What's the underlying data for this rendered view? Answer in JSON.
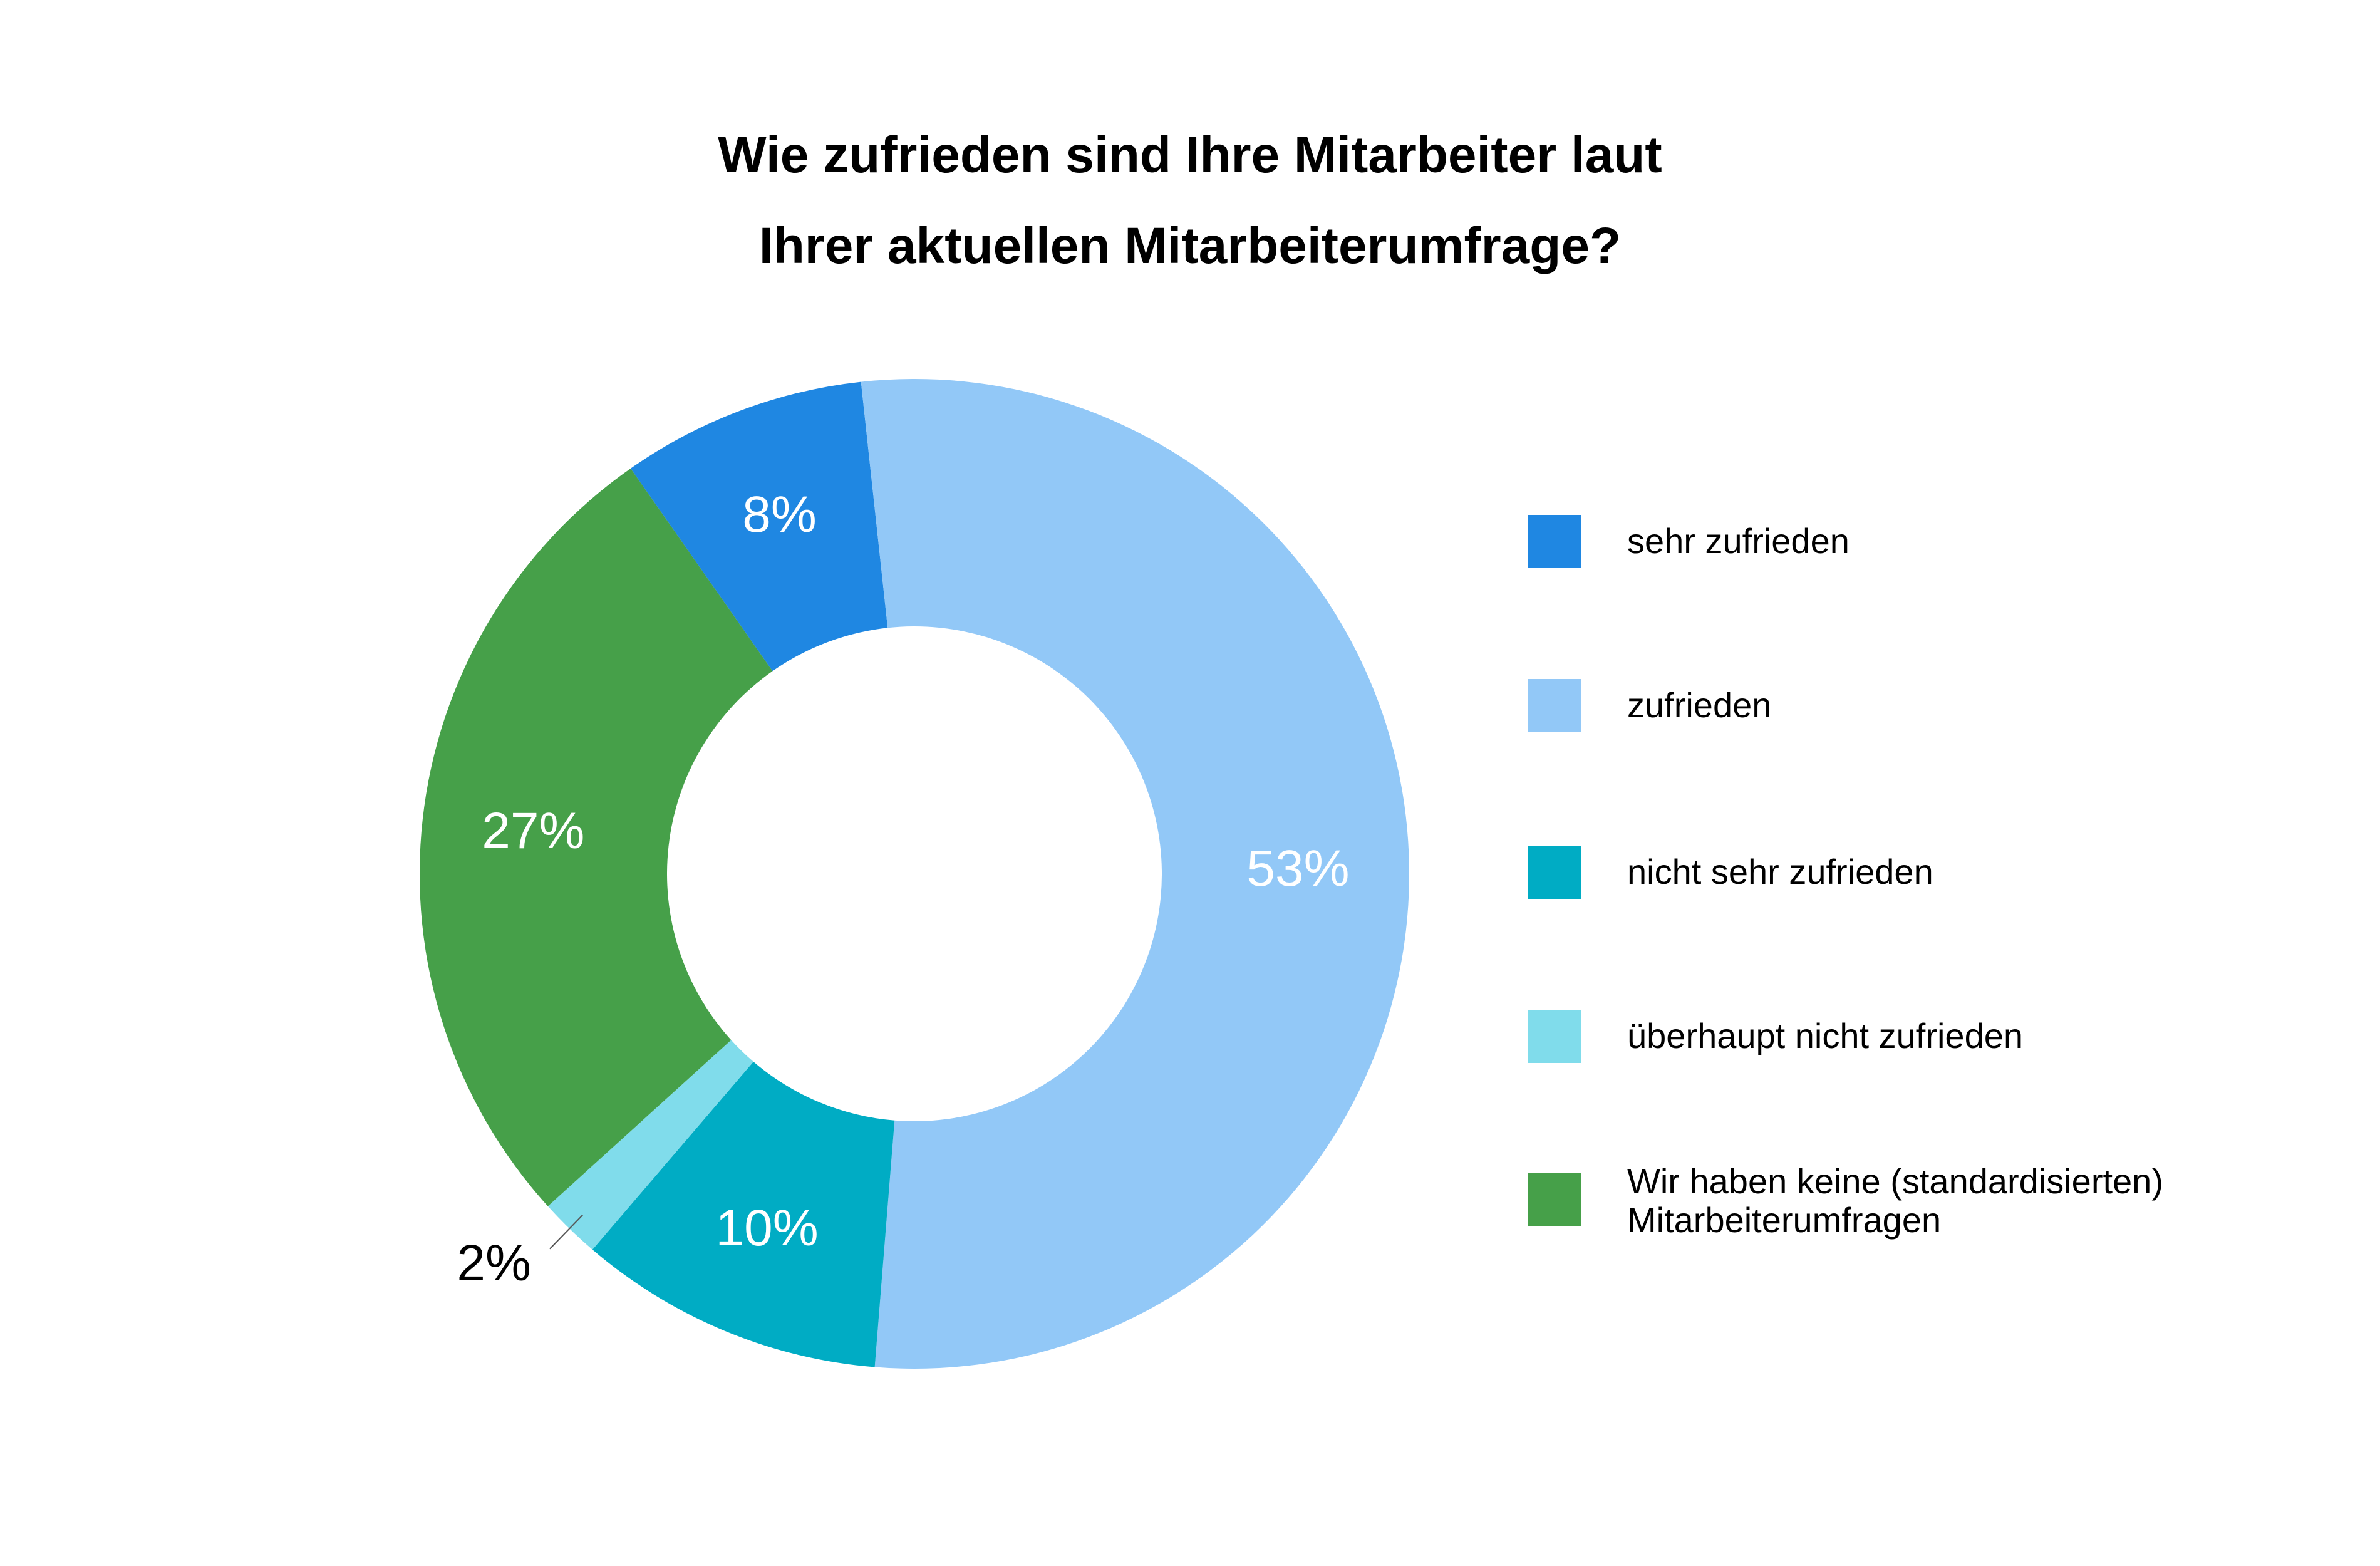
{
  "chart_data": {
    "type": "pie",
    "variant": "donut",
    "title_lines": [
      "Wie zufrieden sind Ihre Mitarbeiter laut",
      "Ihrer aktuellen Mitarbeiterumfrage?"
    ],
    "categories": [
      "sehr zufrieden",
      "zufrieden",
      "nicht sehr zufrieden",
      "überhaupt nicht zufrieden",
      "Wir haben keine (standardisierten)\nMitarbeiterumfragen"
    ],
    "values": [
      8,
      53,
      10,
      2,
      27
    ],
    "value_labels": [
      "8%",
      "53%",
      "10%",
      "2%",
      "27%"
    ],
    "colors": [
      "#1f87e2",
      "#92c8f7",
      "#00acc4",
      "#80dceb",
      "#46a049"
    ],
    "label_colors": [
      "#ffffff",
      "#ffffff",
      "#ffffff",
      "#000000",
      "#ffffff"
    ],
    "start_angle_deg": -35,
    "direction": "clockwise",
    "legend_position": "right"
  }
}
